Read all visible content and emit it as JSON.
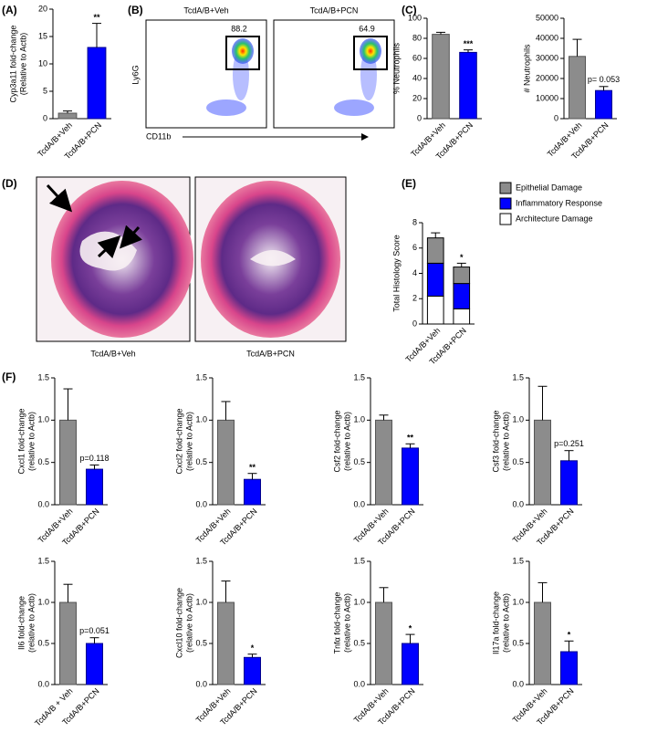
{
  "chart_data": [
    {
      "type": "bar",
      "panel": "(A)",
      "ylabel": [
        "Cyp3a11 fold-change",
        "(Relative to Actb)"
      ],
      "categories": [
        "TcdA/B+Veh",
        "TcdA/B+PCN"
      ],
      "values": [
        1,
        13
      ],
      "errors": [
        0.4,
        4.4
      ],
      "colors": [
        "#8c8c8c",
        "#0000ff"
      ],
      "ylim": [
        0,
        20
      ],
      "yticks": [
        0,
        5,
        10,
        15,
        20
      ],
      "annotation": "**"
    },
    {
      "type": "flow",
      "panel": "(B)",
      "titles": [
        "TcdA/B+Veh",
        "TcdA/B+PCN"
      ],
      "gate_percents": [
        88.2,
        64.9
      ],
      "xlabel": "CD11b",
      "ylabel": "Ly6G"
    },
    {
      "type": "bar",
      "panel": "(C)",
      "ylabel": [
        "% Neutrophils"
      ],
      "categories": [
        "TcdA/B+Veh",
        "TcdA/B+PCN"
      ],
      "values": [
        84,
        66
      ],
      "errors": [
        2,
        2.5
      ],
      "colors": [
        "#8c8c8c",
        "#0000ff"
      ],
      "ylim": [
        0,
        100
      ],
      "yticks": [
        0,
        20,
        40,
        60,
        80,
        100
      ],
      "annotation": "***"
    },
    {
      "type": "bar",
      "ylabel": [
        "# Neutrophils"
      ],
      "categories": [
        "TcdA/B+Veh",
        "TcdA/B+PCN"
      ],
      "values": [
        31000,
        14000
      ],
      "errors": [
        8500,
        2000
      ],
      "colors": [
        "#8c8c8c",
        "#0000ff"
      ],
      "ylim": [
        0,
        50000
      ],
      "yticks": [
        0,
        10000,
        20000,
        30000,
        40000,
        50000
      ],
      "annotation": "p= 0.053"
    },
    {
      "type": "image",
      "panel": "(D)",
      "captions": [
        "TcdA/B+Veh",
        "TcdA/B+PCN"
      ]
    },
    {
      "type": "stacked_bar",
      "panel": "(E)",
      "ylabel": [
        "Total Histology Score"
      ],
      "categories": [
        "TcdA/B+Veh",
        "TcdA/B+PCN"
      ],
      "series": [
        {
          "name": "Epithelial Damage",
          "color": "#8c8c8c",
          "values": [
            2.0,
            1.3
          ],
          "errors": [
            0.4,
            0.3
          ]
        },
        {
          "name": "Inflammatory Response",
          "color": "#0000ff",
          "values": [
            2.6,
            2.0
          ],
          "errors": [
            0.3,
            0.2
          ]
        },
        {
          "name": "Architecture Damage",
          "color": "#ffffff",
          "values": [
            2.2,
            1.2
          ],
          "errors": [
            0.3,
            0.2
          ]
        }
      ],
      "ylim": [
        0,
        8
      ],
      "yticks": [
        0,
        2,
        4,
        6,
        8
      ],
      "annotation": "*"
    },
    {
      "type": "bar",
      "panel": "(F)",
      "ylabel": [
        "Cxcl1 fold-change",
        "(relative to Actb)"
      ],
      "categories": [
        "TcdA/B+Veh",
        "TcdA/B+PCN"
      ],
      "values": [
        1.0,
        0.42
      ],
      "errors": [
        0.37,
        0.05
      ],
      "colors": [
        "#8c8c8c",
        "#0000ff"
      ],
      "ylim": [
        0,
        1.5
      ],
      "yticks": [
        {
          "value": 0,
          "label": "0.0"
        },
        0.5,
        {
          "value": 1,
          "label": "1.0"
        },
        1.5
      ],
      "annotation": "p=0.118"
    },
    {
      "type": "bar",
      "ylabel": [
        "Cxcl2 fold-change",
        "(relative to Actb)"
      ],
      "categories": [
        "TcdA/B+Veh",
        "TcdA/B+PCN"
      ],
      "values": [
        1.0,
        0.3
      ],
      "errors": [
        0.22,
        0.07
      ],
      "colors": [
        "#8c8c8c",
        "#0000ff"
      ],
      "ylim": [
        0,
        1.5
      ],
      "yticks": [
        {
          "value": 0,
          "label": "0.0"
        },
        0.5,
        {
          "value": 1,
          "label": "1.0"
        },
        1.5
      ],
      "annotation": "**"
    },
    {
      "type": "bar",
      "ylabel": [
        "Csf2 fold-change",
        "(relative to Actb)"
      ],
      "categories": [
        "TcdA/B+Veh",
        "TcdA/B+PCN"
      ],
      "values": [
        1.0,
        0.67
      ],
      "errors": [
        0.06,
        0.05
      ],
      "colors": [
        "#8c8c8c",
        "#0000ff"
      ],
      "ylim": [
        0,
        1.5
      ],
      "yticks": [
        {
          "value": 0,
          "label": "0.0"
        },
        0.5,
        {
          "value": 1,
          "label": "1.0"
        },
        1.5
      ],
      "annotation": "**"
    },
    {
      "type": "bar",
      "ylabel": [
        "Csf3 fold-change",
        "(relative to Actb)"
      ],
      "categories": [
        "TcdA/B+Veh",
        "TcdA/B+PCN"
      ],
      "values": [
        1.0,
        0.52
      ],
      "errors": [
        0.4,
        0.12
      ],
      "colors": [
        "#8c8c8c",
        "#0000ff"
      ],
      "ylim": [
        0,
        1.5
      ],
      "yticks": [
        {
          "value": 0,
          "label": "0.0"
        },
        0.5,
        {
          "value": 1,
          "label": "1.0"
        },
        1.5
      ],
      "annotation": "p=0.251"
    },
    {
      "type": "bar",
      "ylabel": [
        "Il6 fold-change",
        "(relative to Actb)"
      ],
      "categories": [
        "TcdA/B + Veh",
        "TcdA/B+PCN"
      ],
      "values": [
        1.0,
        0.5
      ],
      "errors": [
        0.22,
        0.07
      ],
      "colors": [
        "#8c8c8c",
        "#0000ff"
      ],
      "ylim": [
        0,
        1.5
      ],
      "yticks": [
        {
          "value": 0,
          "label": "0.0"
        },
        0.5,
        {
          "value": 1,
          "label": "1.0"
        },
        1.5
      ],
      "annotation": "p=0.051"
    },
    {
      "type": "bar",
      "ylabel": [
        "Cxcl10 fold-change",
        "(relative to Actb)"
      ],
      "categories": [
        "TcdA/B+Veh",
        "TcdA/B+PCN"
      ],
      "values": [
        1.0,
        0.33
      ],
      "errors": [
        0.26,
        0.04
      ],
      "colors": [
        "#8c8c8c",
        "#0000ff"
      ],
      "ylim": [
        0,
        1.5
      ],
      "yticks": [
        {
          "value": 0,
          "label": "0.0"
        },
        0.5,
        {
          "value": 1,
          "label": "1.0"
        },
        1.5
      ],
      "annotation": "*"
    },
    {
      "type": "bar",
      "ylabel": [
        "Tnfα fold-change",
        "(relative to Actb)"
      ],
      "categories": [
        "TcdA/B+Veh",
        "TcdA/B+PCN"
      ],
      "values": [
        1.0,
        0.5
      ],
      "errors": [
        0.18,
        0.11
      ],
      "colors": [
        "#8c8c8c",
        "#0000ff"
      ],
      "ylim": [
        0,
        1.5
      ],
      "yticks": [
        {
          "value": 0,
          "label": "0.0"
        },
        0.5,
        {
          "value": 1,
          "label": "1.0"
        },
        1.5
      ],
      "annotation": "*"
    },
    {
      "type": "bar",
      "ylabel": [
        "Il17a fold-change",
        "(relative to Actb)"
      ],
      "categories": [
        "TcdA/B+Veh",
        "TcdA/B+PCN"
      ],
      "values": [
        1.0,
        0.4
      ],
      "errors": [
        0.24,
        0.13
      ],
      "colors": [
        "#8c8c8c",
        "#0000ff"
      ],
      "ylim": [
        0,
        1.5
      ],
      "yticks": [
        {
          "value": 0,
          "label": "0.0"
        },
        0.5,
        {
          "value": 1,
          "label": "1.0"
        },
        1.5
      ],
      "annotation": "*"
    }
  ]
}
